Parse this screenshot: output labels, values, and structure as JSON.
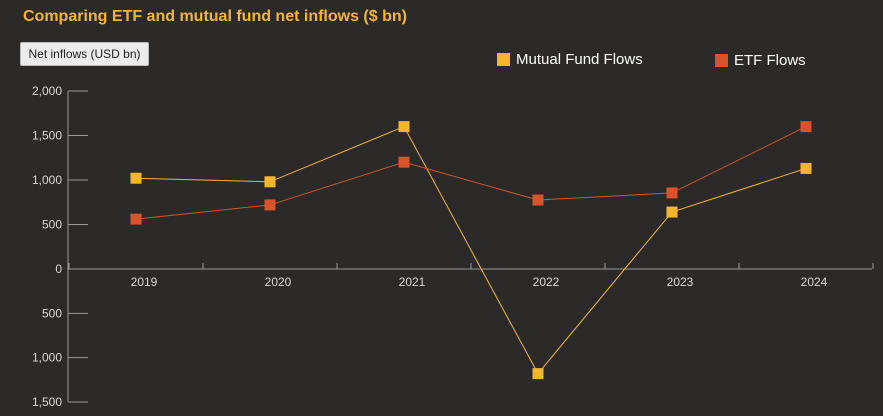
{
  "chart_data": {
    "type": "line",
    "title": "Comparing ETF and mutual fund net inflows ($ bn)",
    "ylabel": "Net inflows (USD bn)",
    "categories": [
      "2019",
      "2020",
      "2021",
      "2022",
      "2023",
      "2024"
    ],
    "ylim": [
      -1500,
      2000
    ],
    "yticks": [
      2000,
      1500,
      1000,
      500,
      0,
      -500,
      -1000,
      -1500
    ],
    "ytick_labels": [
      "2,000",
      "1,500",
      "1,000",
      "500",
      "0",
      "500",
      "1,000",
      "1,500"
    ],
    "grid": false,
    "legend_position": "top-right",
    "series": [
      {
        "name": "Mutual Fund Flows",
        "color": "#f5b52e",
        "values": [
          1020,
          980,
          1600,
          -1180,
          640,
          1130
        ]
      },
      {
        "name": "ETF Flows",
        "color": "#d9532b",
        "values": [
          560,
          720,
          1200,
          775,
          855,
          1600
        ]
      }
    ]
  }
}
